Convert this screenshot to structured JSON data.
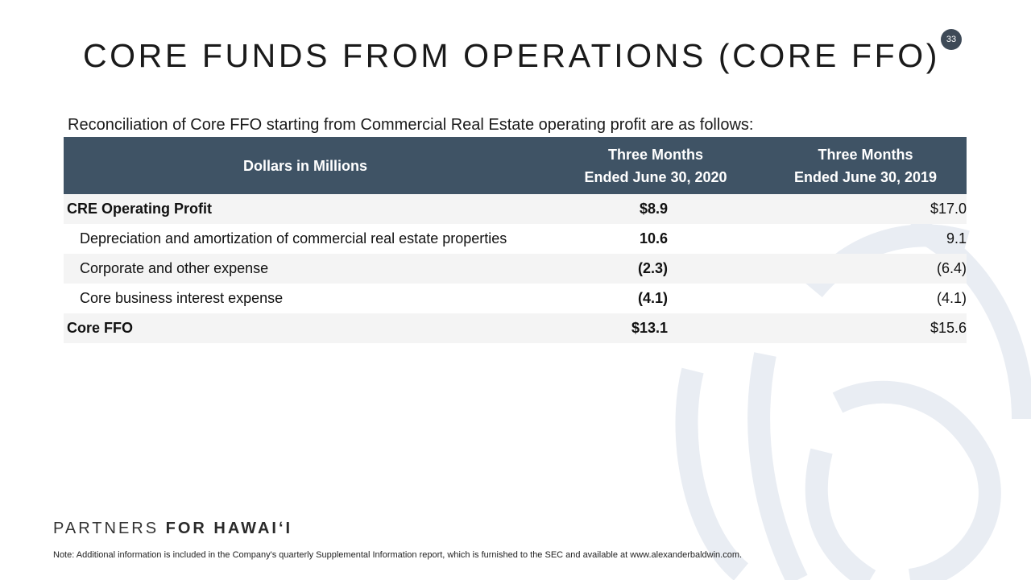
{
  "page": {
    "number": "33"
  },
  "title": "CORE FUNDS FROM OPERATIONS (CORE FFO)",
  "subtitle": "Reconciliation of Core FFO starting from Commercial Real Estate operating profit are as follows:",
  "table": {
    "header": {
      "label": "Dollars in Millions",
      "col1": [
        "Three Months",
        "Ended June 30, 2020"
      ],
      "col2": [
        "Three Months",
        "Ended June 30, 2019"
      ]
    },
    "rows": [
      {
        "label": "CRE Operating Profit",
        "v2020": "$8.9",
        "v2019": "$17.0"
      },
      {
        "label": "Depreciation and amortization of commercial real estate properties",
        "v2020": "10.6",
        "v2019": "9.1"
      },
      {
        "label": "Corporate and other expense",
        "v2020": "(2.3)",
        "v2019": "(6.4)"
      },
      {
        "label": "Core business interest expense",
        "v2020": "(4.1)",
        "v2019": "(4.1)"
      },
      {
        "label": "Core FFO",
        "v2020": "$13.1",
        "v2019": "$15.6"
      }
    ]
  },
  "brand": {
    "light": "PARTNERS",
    "bold": "FOR HAWAIʻI"
  },
  "footnote": "Note: Additional information is included in the Company's quarterly Supplemental Information report, which is furnished to the SEC and available at www.alexanderbaldwin.com."
}
